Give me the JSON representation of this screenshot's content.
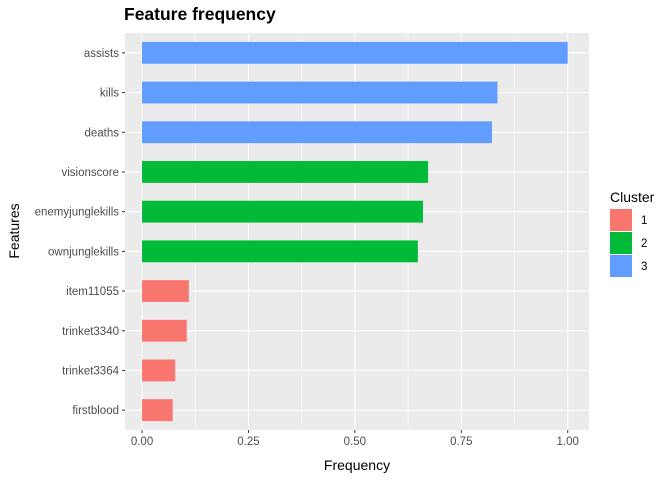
{
  "chart_data": {
    "type": "bar",
    "orientation": "horizontal",
    "title": "Feature frequency",
    "xlabel": "Frequency",
    "ylabel": "Features",
    "xlim": [
      -0.04,
      1.05
    ],
    "x_ticks": [
      0.0,
      0.25,
      0.5,
      0.75,
      1.0
    ],
    "x_tick_labels": [
      "0.00",
      "0.25",
      "0.50",
      "0.75",
      "1.00"
    ],
    "grid": true,
    "legend": {
      "title": "Cluster",
      "placement": "right",
      "entries": [
        {
          "label": "1",
          "color": "#F8766D"
        },
        {
          "label": "2",
          "color": "#00BA38"
        },
        {
          "label": "3",
          "color": "#619CFF"
        }
      ]
    },
    "categories": [
      "assists",
      "kills",
      "deaths",
      "visionscore",
      "enemyjunglekills",
      "ownjunglekills",
      "item11055",
      "trinket3340",
      "trinket3364",
      "firstblood"
    ],
    "values": [
      1.0,
      0.835,
      0.822,
      0.672,
      0.66,
      0.648,
      0.11,
      0.105,
      0.078,
      0.072
    ],
    "clusters": [
      "3",
      "3",
      "3",
      "2",
      "2",
      "2",
      "1",
      "1",
      "1",
      "1"
    ],
    "colors": {
      "panel_background": "#EBEBEB",
      "grid": "#FFFFFF",
      "tick_text": "#4D4D4D",
      "tick_mark": "#333333"
    }
  }
}
